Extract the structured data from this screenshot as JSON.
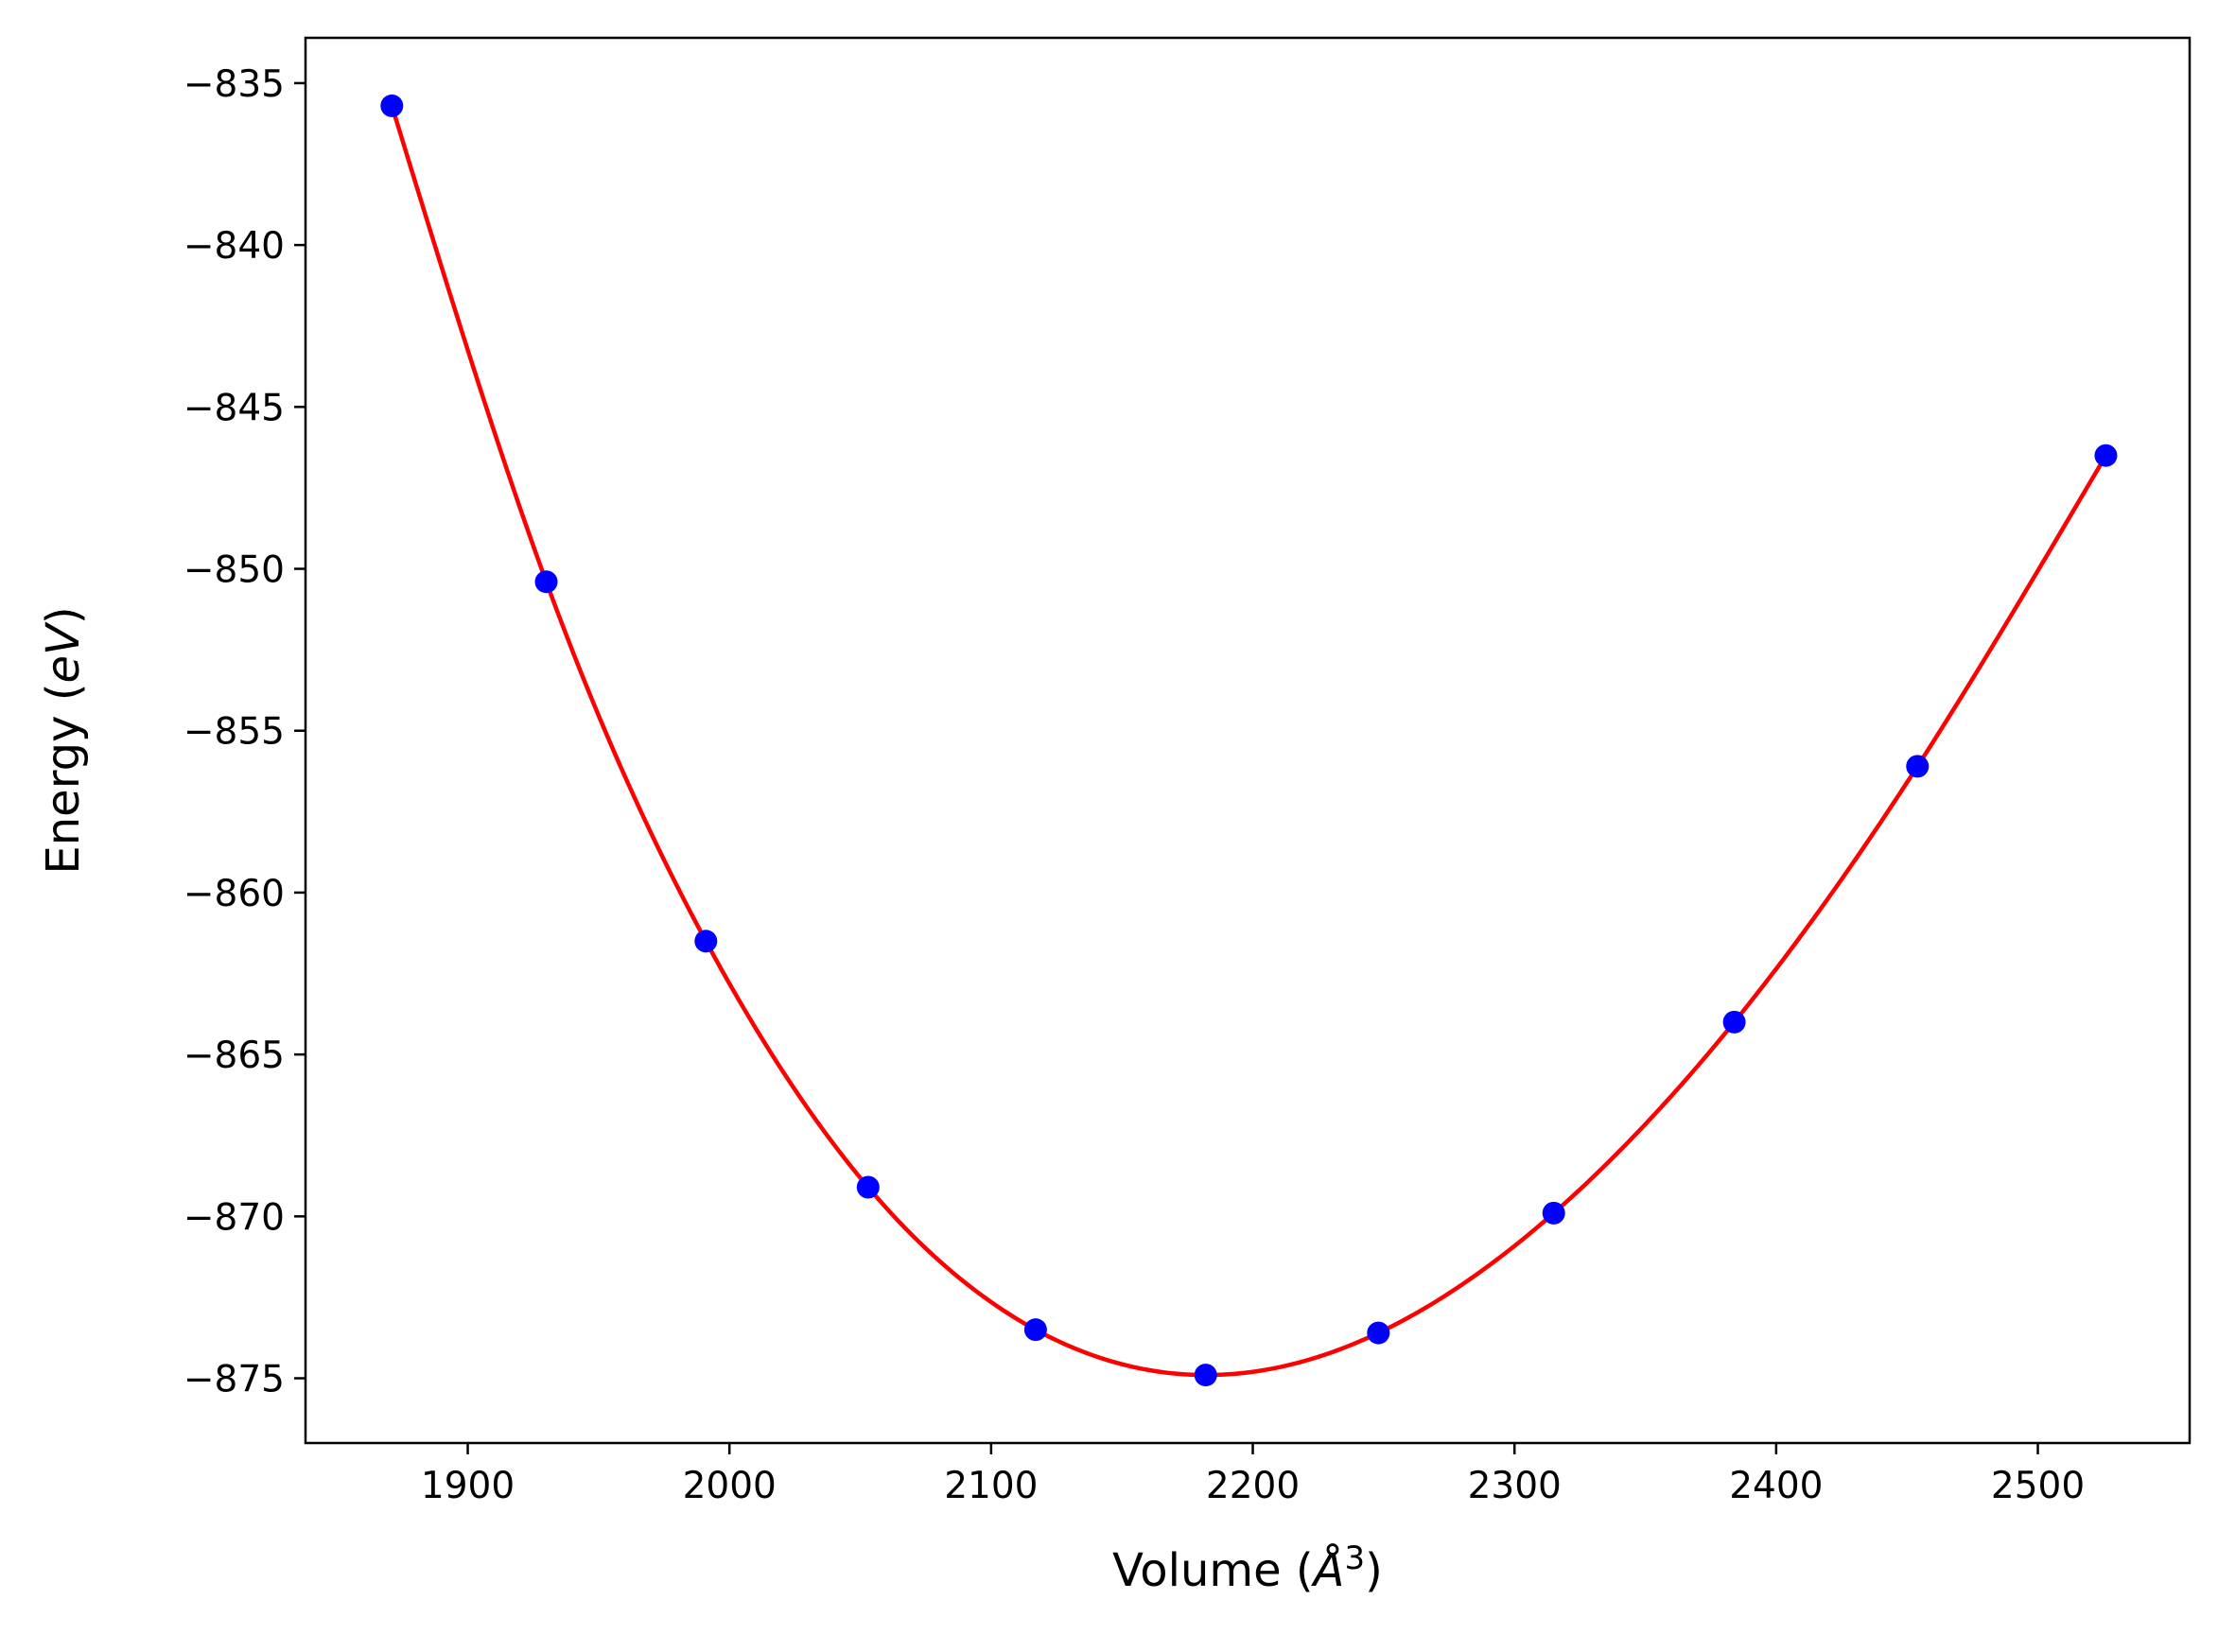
{
  "chart_data": {
    "type": "scatter",
    "title": "",
    "xlabel": "Volume ($\\AA^3$)",
    "ylabel": "Energy ($eV$)",
    "xlim": [
      1838,
      2558
    ],
    "ylim": [
      -877.0,
      -833.6
    ],
    "grid": false,
    "legend": "none",
    "x_ticks": [
      1900,
      2000,
      2100,
      2200,
      2300,
      2400,
      2500
    ],
    "y_ticks": [
      -835,
      -840,
      -845,
      -850,
      -855,
      -860,
      -865,
      -870,
      -875
    ],
    "x_tick_labels": [
      "1900",
      "2000",
      "2100",
      "2200",
      "2300",
      "2400",
      "2500"
    ],
    "y_tick_labels": [
      "−835",
      "−840",
      "−845",
      "−850",
      "−855",
      "−860",
      "−865",
      "−870",
      "−875"
    ],
    "colors": {
      "points": "#0000ff",
      "fit": "#ff0000",
      "axes": "#000000"
    },
    "series": [
      {
        "kind": "points",
        "x": [
          1871,
          1930,
          1991,
          2053,
          2117,
          2182,
          2248,
          2315,
          2384,
          2454,
          2526
        ],
        "y": [
          -835.7,
          -850.4,
          -861.5,
          -869.1,
          -873.5,
          -874.9,
          -873.6,
          -869.9,
          -864.0,
          -856.1,
          -846.5
        ]
      },
      {
        "kind": "fit_curve",
        "x": [
          1871,
          1930,
          1991,
          2053,
          2117,
          2182,
          2248,
          2315,
          2384,
          2454,
          2526
        ],
        "y": [
          -835.7,
          -850.4,
          -861.5,
          -869.1,
          -873.5,
          -874.9,
          -873.6,
          -869.9,
          -864.0,
          -856.1,
          -846.5
        ]
      }
    ]
  }
}
